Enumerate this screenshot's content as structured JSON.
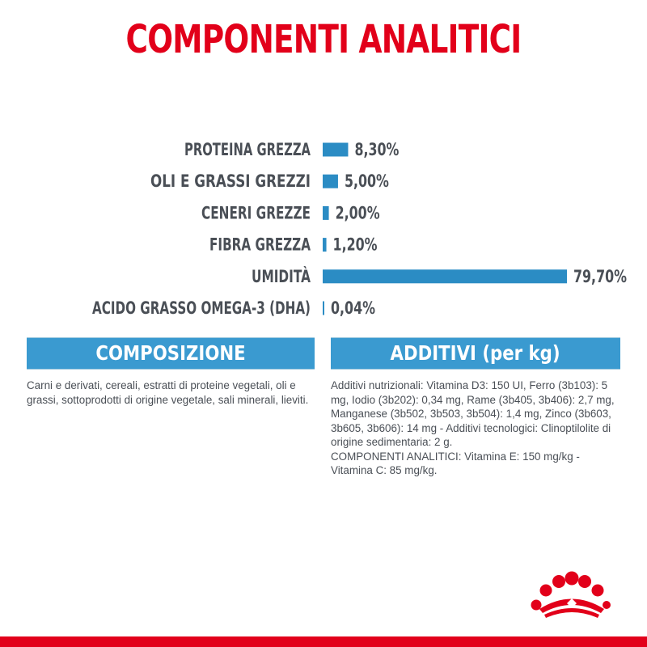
{
  "title": "COMPONENTI ANALITICI",
  "colors": {
    "title": "#e2001a",
    "bar": "#2b8cc4",
    "header_bg": "#3a9ad0",
    "text": "#4a4f56",
    "footer": "#e2001a",
    "logo": "#e2001a"
  },
  "chart_data": {
    "type": "bar",
    "orientation": "horizontal",
    "categories": [
      "PROTEINA GREZZA",
      "OLI E GRASSI GREZZI",
      "CENERI GREZZE",
      "FIBRA GREZZA",
      "UMIDITÀ",
      "ACIDO GRASSO OMEGA-3 (DHA)"
    ],
    "values": [
      8.3,
      5.0,
      2.0,
      1.2,
      79.7,
      0.04
    ],
    "value_labels": [
      "8,30%",
      "5,00%",
      "2,00%",
      "1,20%",
      "79,70%",
      "0,04%"
    ],
    "unit": "%",
    "xlim": [
      0,
      79.7
    ],
    "grid": false,
    "legend": "none"
  },
  "sections": {
    "composizione": {
      "title": "COMPOSIZIONE",
      "text": "Carni e derivati, cereali, estratti di proteine vegetali, oli e grassi, sottoprodotti di origine vegetale, sali minerali, lieviti."
    },
    "additivi": {
      "title": "ADDITIVI (per kg)",
      "text_1": "Additivi nutrizionali: Vitamina D3: 150 UI, Ferro (3b103): 5 mg, Iodio (3b202): 0,34 mg, Rame (3b405, 3b406): 2,7 mg, Manganese (3b502, 3b503, 3b504): 1,4 mg, Zinco (3b603, 3b605, 3b606): 14 mg - Additivi tecnologici: Clinoptilolite di origine sedimentaria: 2 g.",
      "text_2": "COMPONENTI ANALITICI: Vitamina E: 150 mg/kg - Vitamina C: 85 mg/kg."
    }
  },
  "logo": {
    "icon": "crown-icon"
  }
}
